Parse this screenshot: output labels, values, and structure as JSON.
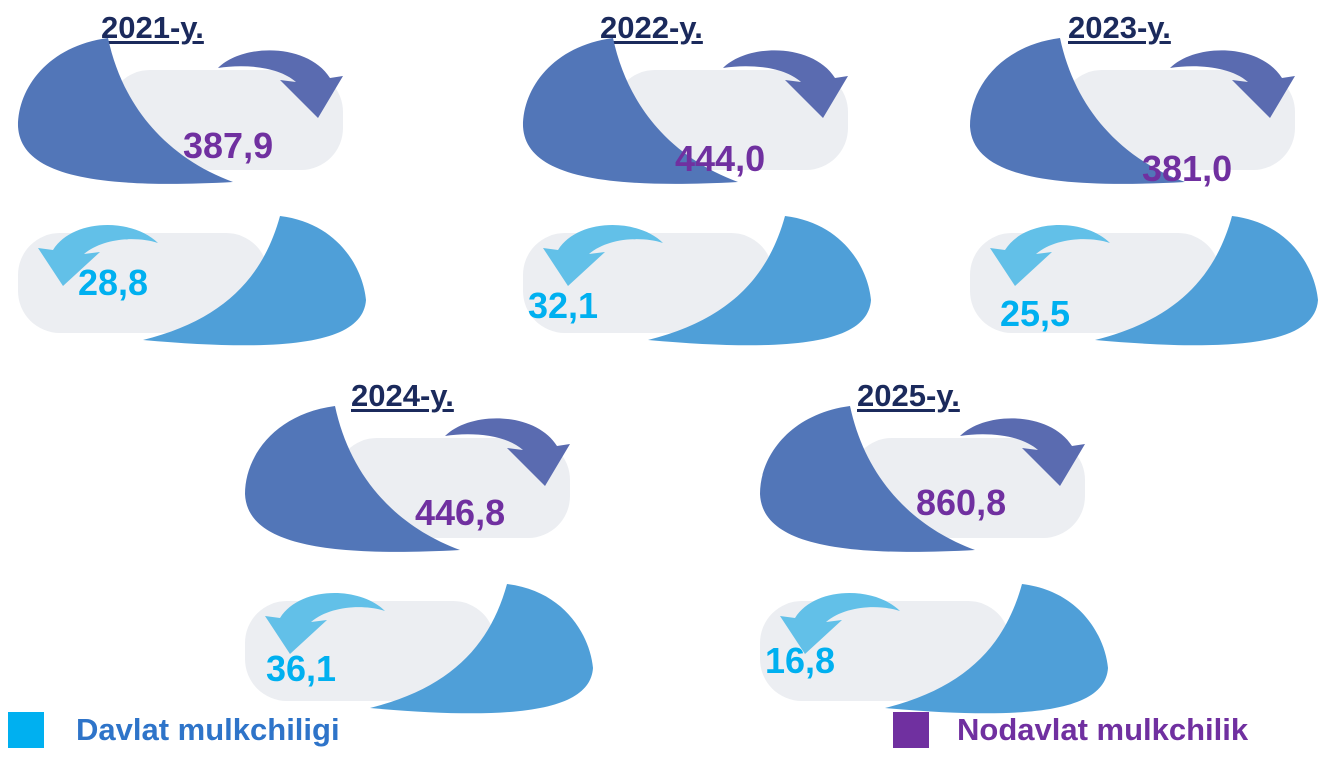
{
  "chart_data": {
    "type": "infographic",
    "series": [
      {
        "name": "Nodavlat mulkchilik",
        "color": "#7030a0"
      },
      {
        "name": "Davlat mulkchiligi",
        "color": "#00b0f0"
      }
    ],
    "years": [
      {
        "label": "2021-y.",
        "nodavlat": "387,9",
        "davlat": "28,8"
      },
      {
        "label": "2022-y.",
        "nodavlat": "444,0",
        "davlat": "32,1"
      },
      {
        "label": "2023-y.",
        "nodavlat": "381,0",
        "davlat": "25,5"
      },
      {
        "label": "2024-y.",
        "nodavlat": "446,8",
        "davlat": "36,1"
      },
      {
        "label": "2025-y.",
        "nodavlat": "860,8",
        "davlat": "16,8"
      }
    ]
  },
  "legend": {
    "davlat_label": "Davlat  mulkchiligi",
    "nodavlat_label": "Nodavlat  mulkchilik"
  },
  "colors": {
    "title": "#1b2a5c",
    "top_shape": "#5276b8",
    "top_arrow": "#5a6bb0",
    "bottom_shape": "#4f9fd8",
    "bottom_arrow": "#62c0e8",
    "panel": "#eceef2"
  }
}
